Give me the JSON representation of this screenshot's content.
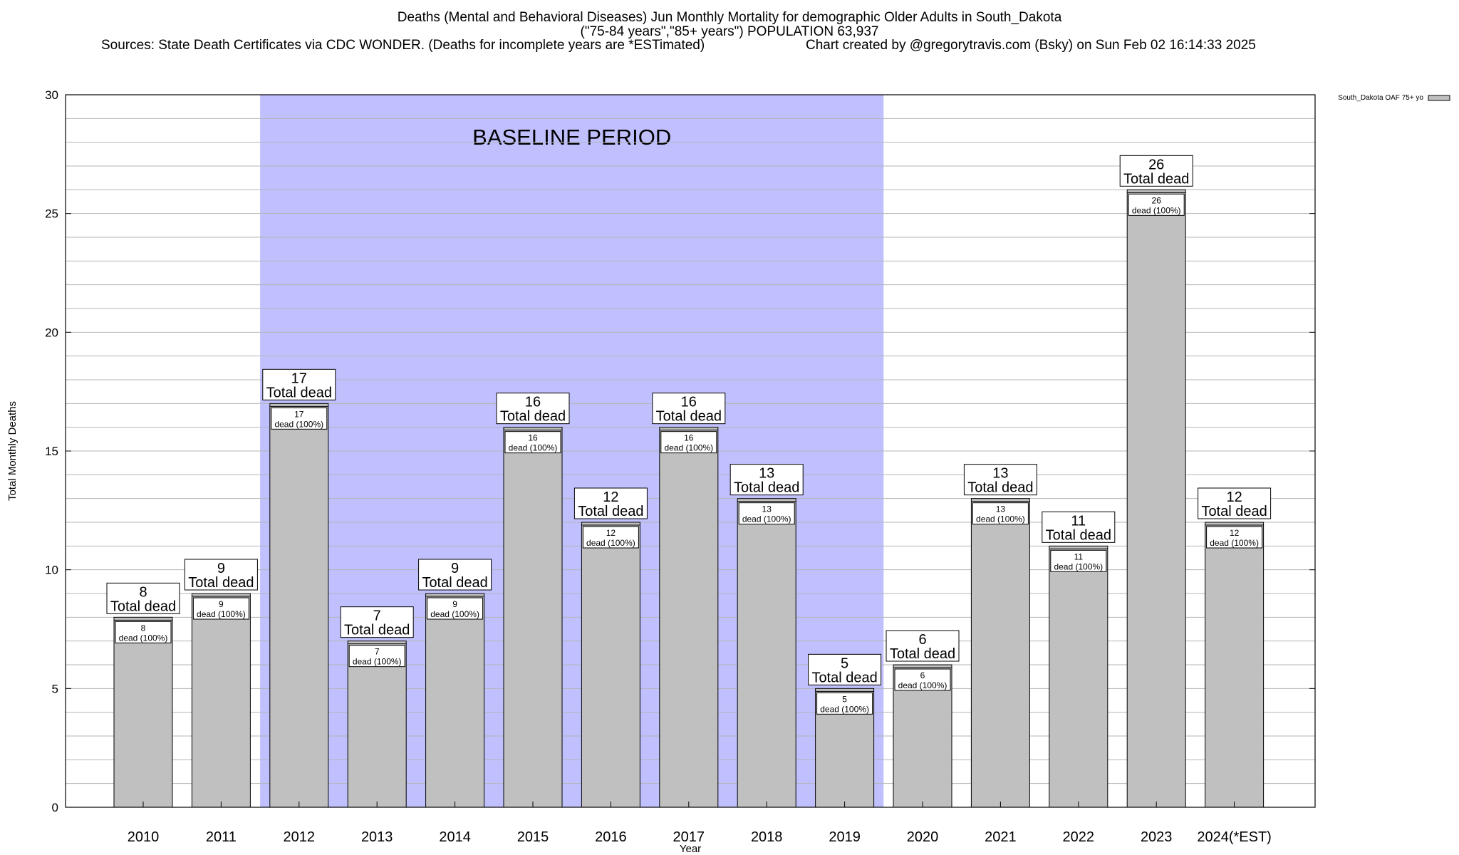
{
  "chart_data": {
    "type": "bar",
    "title": "Deaths (Mental and Behavioral Diseases) Jun Monthly Mortality for demographic Older Adults in South_Dakota",
    "subtitle": "(\"75-84 years\",\"85+ years\") POPULATION 63,937",
    "sources": "Sources: State Death Certificates via CDC WONDER. (Deaths for incomplete years are *ESTimated)",
    "credit": "Chart created by @gregorytravis.com (Bsky) on Sun Feb 02 16:14:33 2025",
    "xlabel": "Year",
    "ylabel": "Total Monthly Deaths",
    "ylim": [
      0,
      30
    ],
    "yticks": [
      0,
      5,
      10,
      15,
      20,
      25,
      30
    ],
    "categories": [
      "2010",
      "2011",
      "2012",
      "2013",
      "2014",
      "2015",
      "2016",
      "2017",
      "2018",
      "2019",
      "2020",
      "2021",
      "2022",
      "2023",
      "2024(*EST)"
    ],
    "series": [
      {
        "name": "South_Dakota OAF 75+ yo",
        "values": [
          8,
          9,
          17,
          7,
          9,
          16,
          12,
          16,
          13,
          5,
          6,
          13,
          11,
          26,
          12
        ]
      }
    ],
    "total_label": "Total dead",
    "inner_label": "dead (100%)",
    "baseline": {
      "label": "BASELINE PERIOD",
      "start": "2012",
      "end": "2019"
    },
    "grid": true,
    "legend": "top-right",
    "colors": {
      "bar": "#c0c0c0",
      "baseline_band": "#c0c0ff",
      "grid": "#b4b4b4",
      "frame": "#000000"
    }
  }
}
